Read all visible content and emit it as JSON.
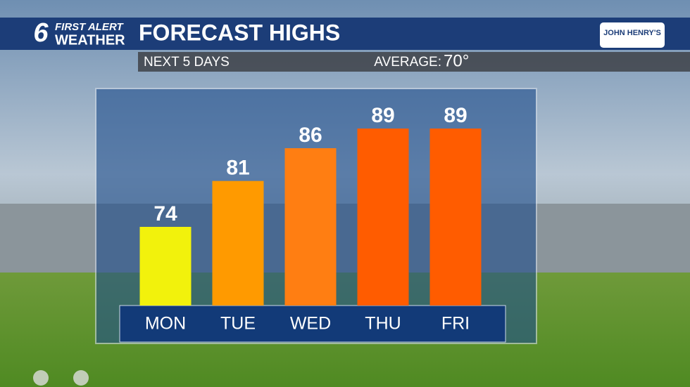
{
  "brand": {
    "number": "6",
    "line1": "FIRST ALERT",
    "line2": "WEATHER",
    "sponsor": "JOHN HENRY'S"
  },
  "chart_data": {
    "type": "bar",
    "title": "FORECAST HIGHS",
    "subtitle": "NEXT 5 DAYS",
    "average_label": "AVERAGE:",
    "average": "70°",
    "categories": [
      "MON",
      "TUE",
      "WED",
      "THU",
      "FRI"
    ],
    "values": [
      74,
      81,
      86,
      89,
      89
    ],
    "colors": [
      "#f2f20c",
      "#ff9a00",
      "#ff7e12",
      "#ff5c00",
      "#ff5c00"
    ],
    "ylim": [
      62,
      95
    ]
  }
}
